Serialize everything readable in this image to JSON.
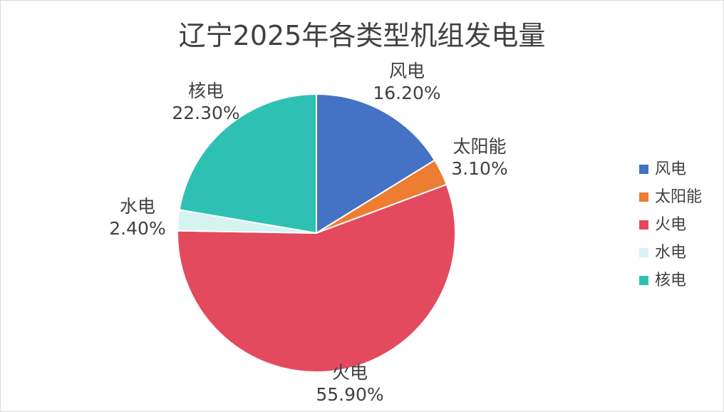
{
  "chart_data": {
    "type": "pie",
    "title": "辽宁2025年各类型机组发电量",
    "categories": [
      "风电",
      "太阳能",
      "火电",
      "水电",
      "核电"
    ],
    "values": [
      16.2,
      3.1,
      55.9,
      2.4,
      22.3
    ],
    "value_labels": [
      "16.20%",
      "3.10%",
      "55.90%",
      "2.40%",
      "22.30%"
    ],
    "colors": [
      "#4472C4",
      "#ED7D31",
      "#E34A5E",
      "#D5F3F1",
      "#2EC1B3"
    ],
    "legend": "right",
    "data_labels": "outside"
  }
}
